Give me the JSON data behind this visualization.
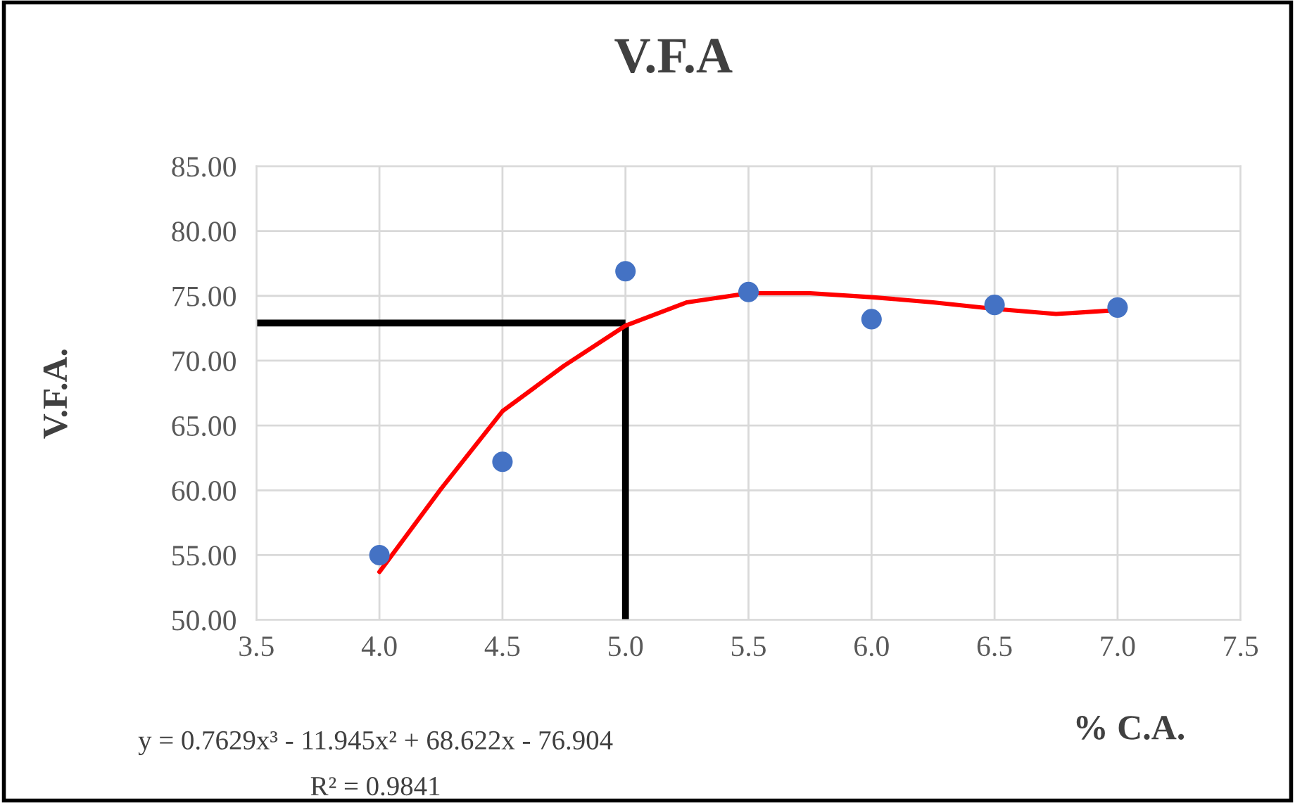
{
  "chart_data": {
    "type": "scatter",
    "title": "V.F.A",
    "xlabel": "% C.A.",
    "ylabel": "V.F.A.",
    "series": [
      {
        "color": "#4472c4",
        "x": [
          4.0,
          4.5,
          5.0,
          5.5,
          6.0,
          6.5,
          7.0
        ],
        "values": [
          55.0,
          62.2,
          76.9,
          75.3,
          73.2,
          74.3,
          74.1
        ],
        "marker": "circle"
      },
      {
        "type": "line",
        "color": "#ff0000",
        "x": [
          4.0,
          4.25,
          4.5,
          4.75,
          5.0,
          5.25,
          5.5,
          5.75,
          6.0,
          6.25,
          6.5,
          6.75,
          7.0
        ],
        "values": [
          53.7,
          60.1,
          66.1,
          69.6,
          72.7,
          74.5,
          75.2,
          75.2,
          74.9,
          74.5,
          74.0,
          73.6,
          73.9
        ],
        "marker": "none",
        "line_style": "solid"
      }
    ],
    "xlim": [
      3.5,
      7.5
    ],
    "xticks": [
      {
        "value": 3.5,
        "label": "3.5"
      },
      {
        "value": 4.0,
        "label": "4.0"
      },
      {
        "value": 4.5,
        "label": "4.5"
      },
      {
        "value": 5.0,
        "label": "5.0"
      },
      {
        "value": 5.5,
        "label": "5.5"
      },
      {
        "value": 6.0,
        "label": "6.0"
      },
      {
        "value": 6.5,
        "label": "6.5"
      },
      {
        "value": 7.0,
        "label": "7.0"
      },
      {
        "value": 7.5,
        "label": "7.5"
      }
    ],
    "ylim": [
      50,
      85
    ],
    "yticks": [
      {
        "value": 50,
        "label": "50.00"
      },
      {
        "value": 55,
        "label": "55.00"
      },
      {
        "value": 60,
        "label": "60.00"
      },
      {
        "value": 65,
        "label": "65.00"
      },
      {
        "value": 70,
        "label": "70.00"
      },
      {
        "value": 75,
        "label": "75.00"
      },
      {
        "value": 80,
        "label": "80.00"
      },
      {
        "value": 85,
        "label": "85.00"
      }
    ],
    "ref_lines": [
      {
        "axis": "y",
        "value": 72.9,
        "color": "#000000"
      },
      {
        "axis": "x",
        "value": 5.0,
        "color": "#000000"
      }
    ],
    "grid": true,
    "legend": false,
    "annotations": [
      "y = 0.7629x³ - 11.945x² + 68.622x - 76.904",
      "R² = 0.9841"
    ]
  }
}
